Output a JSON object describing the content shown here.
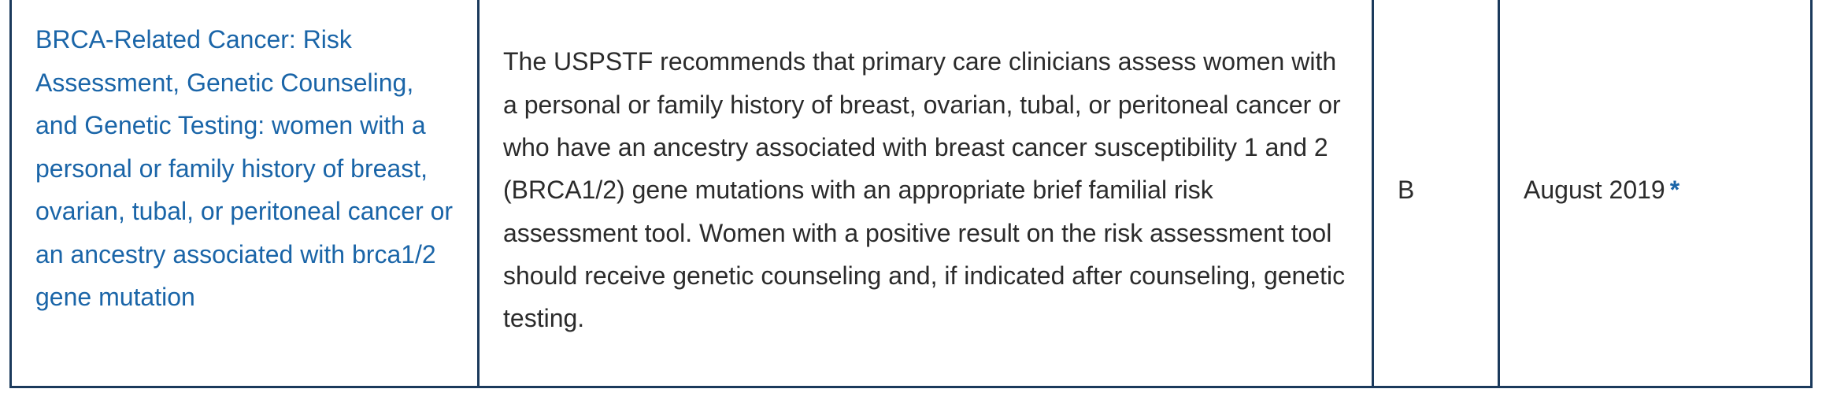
{
  "row": {
    "topic": "BRCA-Related Cancer: Risk Assessment, Genetic Counseling, and Genetic Testing: women with a personal or family history of breast, ovarian, tubal, or peritoneal cancer or an ancestry associated with brca1/2 gene mutation",
    "description": "The USPSTF recommends that primary care clinicians assess women with a personal or family history of breast, ovarian, tubal, or peritoneal cancer or who have an ancestry associated with breast cancer susceptibility 1 and 2 (BRCA1/2) gene mutations with an appropriate brief familial risk assessment tool. Women with a positive result on the risk assessment tool should receive genetic counseling and, if indicated after counseling, genetic testing.",
    "grade": "B",
    "release_date": "August 2019",
    "date_marker": "*"
  },
  "colors": {
    "link": "#1a65a8",
    "border": "#1b3a5c",
    "text": "#2b2b2b"
  }
}
